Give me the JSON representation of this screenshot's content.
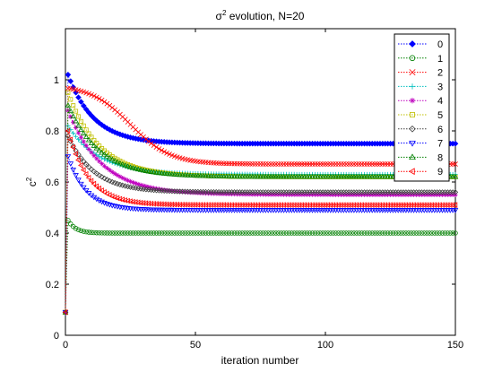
{
  "chart_data": {
    "type": "line",
    "title": "σ² evolution, N=20",
    "title_parts": {
      "base": "σ",
      "sup": "2",
      "rest": " evolution, N=20"
    },
    "xlabel": "iteration number",
    "ylabel_parts": {
      "base": "c",
      "sup": "2"
    },
    "xlim": [
      0,
      150
    ],
    "ylim": [
      0,
      1.2
    ],
    "xticks": [
      0,
      50,
      100,
      150
    ],
    "yticks": [
      0,
      0.2,
      0.4,
      0.6,
      0.8,
      1
    ],
    "xtick_labels": [
      "0",
      "50",
      "100",
      "150"
    ],
    "ytick_labels": [
      "0",
      "0.2",
      "0.4",
      "0.6",
      "0.8",
      "1"
    ],
    "grid": false,
    "legend_position": "top-right",
    "initial_value": 0.09,
    "series": [
      {
        "name": "0",
        "color": "#0000ff",
        "marker": "diamond-filled",
        "start": 1.02,
        "final": 0.75,
        "tau": 10
      },
      {
        "name": "1",
        "color": "#008000",
        "marker": "circle",
        "start": 0.45,
        "final": 0.4,
        "tau": 3
      },
      {
        "name": "2",
        "color": "#ff0000",
        "marker": "x",
        "start": 0.98,
        "final": 0.67,
        "tau": 14,
        "shape": "sigmoid",
        "mid": 25
      },
      {
        "name": "3",
        "color": "#00bfbf",
        "marker": "plus",
        "start": 0.82,
        "final": 0.63,
        "tau": 12
      },
      {
        "name": "4",
        "color": "#bf00bf",
        "marker": "star",
        "start": 0.88,
        "final": 0.55,
        "tau": 13
      },
      {
        "name": "5",
        "color": "#bfbf00",
        "marker": "square",
        "start": 0.95,
        "final": 0.62,
        "tau": 12
      },
      {
        "name": "6",
        "color": "#404040",
        "marker": "diamond",
        "start": 0.78,
        "final": 0.56,
        "tau": 10
      },
      {
        "name": "7",
        "color": "#0000ff",
        "marker": "triangle-down",
        "start": 0.7,
        "final": 0.49,
        "tau": 7
      },
      {
        "name": "8",
        "color": "#008000",
        "marker": "triangle-up",
        "start": 0.9,
        "final": 0.62,
        "tau": 12
      },
      {
        "name": "9",
        "color": "#ff0000",
        "marker": "triangle-left",
        "start": 0.8,
        "final": 0.51,
        "tau": 8
      }
    ]
  }
}
